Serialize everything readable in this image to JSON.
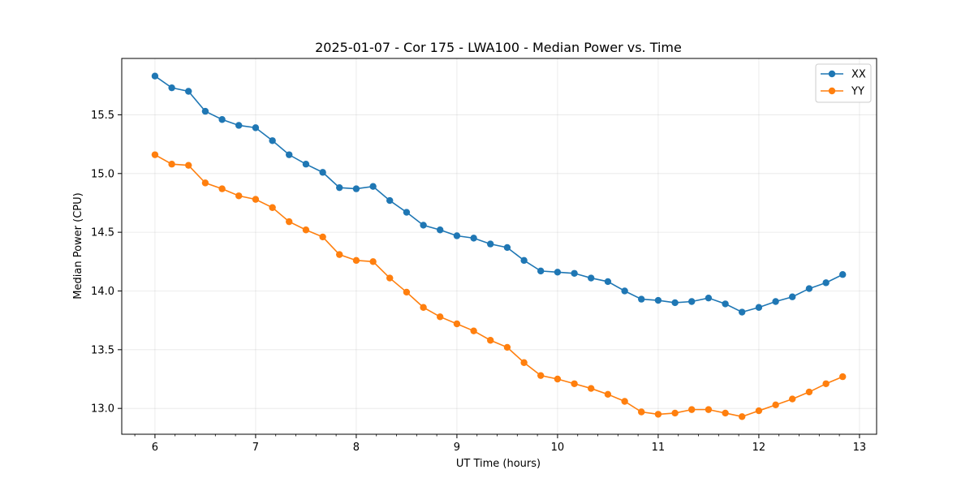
{
  "chart_data": {
    "type": "line",
    "title": "2025-01-07 - Cor 175 - LWA100 - Median Power vs. Time",
    "xlabel": "UT Time (hours)",
    "ylabel": "Median Power (CPU)",
    "xlim": [
      5.67,
      13.17
    ],
    "ylim": [
      12.78,
      15.98
    ],
    "xticks": [
      6,
      7,
      8,
      9,
      10,
      11,
      12,
      13
    ],
    "xtick_labels": [
      "6",
      "7",
      "8",
      "9",
      "10",
      "11",
      "12",
      "13"
    ],
    "xminor_step": 0.2,
    "yticks": [
      13.0,
      13.5,
      14.0,
      14.5,
      15.0,
      15.5
    ],
    "ytick_labels": [
      "13.0",
      "13.5",
      "14.0",
      "14.5",
      "15.0",
      "15.5"
    ],
    "grid": true,
    "legend_position": "top-right",
    "x": [
      6.0,
      6.167,
      6.333,
      6.5,
      6.667,
      6.833,
      7.0,
      7.167,
      7.333,
      7.5,
      7.667,
      7.833,
      8.0,
      8.167,
      8.333,
      8.5,
      8.667,
      8.833,
      9.0,
      9.167,
      9.333,
      9.5,
      9.667,
      9.833,
      10.0,
      10.167,
      10.333,
      10.5,
      10.667,
      10.833,
      11.0,
      11.167,
      11.333,
      11.5,
      11.667,
      11.833,
      12.0,
      12.167,
      12.333,
      12.5,
      12.667,
      12.833
    ],
    "series": [
      {
        "name": "XX",
        "color": "#1f77b4",
        "values": [
          15.83,
          15.73,
          15.7,
          15.53,
          15.46,
          15.41,
          15.39,
          15.28,
          15.16,
          15.08,
          15.01,
          14.88,
          14.87,
          14.89,
          14.77,
          14.67,
          14.56,
          14.52,
          14.47,
          14.45,
          14.4,
          14.37,
          14.26,
          14.17,
          14.16,
          14.15,
          14.11,
          14.08,
          14.0,
          13.93,
          13.92,
          13.9,
          13.91,
          13.94,
          13.89,
          13.82,
          13.86,
          13.91,
          13.95,
          14.02,
          14.07,
          14.14
        ]
      },
      {
        "name": "YY",
        "color": "#ff7f0e",
        "values": [
          15.16,
          15.08,
          15.07,
          14.92,
          14.87,
          14.81,
          14.78,
          14.71,
          14.59,
          14.52,
          14.46,
          14.31,
          14.26,
          14.25,
          14.11,
          13.99,
          13.86,
          13.78,
          13.72,
          13.66,
          13.58,
          13.52,
          13.39,
          13.28,
          13.25,
          13.21,
          13.17,
          13.12,
          13.06,
          12.97,
          12.95,
          12.96,
          12.99,
          12.99,
          12.96,
          12.93,
          12.98,
          13.03,
          13.08,
          13.14,
          13.21,
          13.27
        ]
      }
    ]
  }
}
